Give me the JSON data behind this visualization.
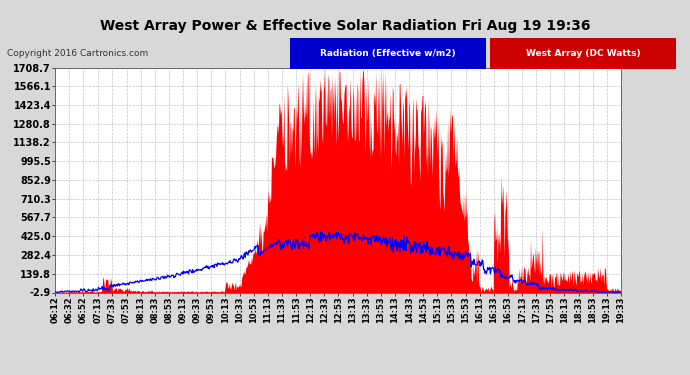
{
  "title": "West Array Power & Effective Solar Radiation Fri Aug 19 19:36",
  "copyright": "Copyright 2016 Cartronics.com",
  "legend_radiation": "Radiation (Effective w/m2)",
  "legend_west": "West Array (DC Watts)",
  "yticks": [
    -2.9,
    139.8,
    282.4,
    425.0,
    567.7,
    710.3,
    852.9,
    995.5,
    1138.2,
    1280.8,
    1423.4,
    1566.1,
    1708.7
  ],
  "ymin": -2.9,
  "ymax": 1708.7,
  "bg_color": "#d8d8d8",
  "plot_bg_color": "#ffffff",
  "title_color": "#000000",
  "radiation_color": "#0000ff",
  "west_array_color": "#ff0000",
  "grid_color": "#aaaaaa",
  "x_labels": [
    "06:12",
    "06:32",
    "06:52",
    "07:13",
    "07:33",
    "07:53",
    "08:13",
    "08:33",
    "08:53",
    "09:13",
    "09:33",
    "09:53",
    "10:13",
    "10:33",
    "10:53",
    "11:13",
    "11:33",
    "11:53",
    "12:13",
    "12:33",
    "12:53",
    "13:13",
    "13:33",
    "13:53",
    "14:13",
    "14:33",
    "14:53",
    "15:13",
    "15:33",
    "15:53",
    "16:13",
    "16:33",
    "16:53",
    "17:13",
    "17:33",
    "17:53",
    "18:13",
    "18:33",
    "18:53",
    "19:13",
    "19:33"
  ]
}
